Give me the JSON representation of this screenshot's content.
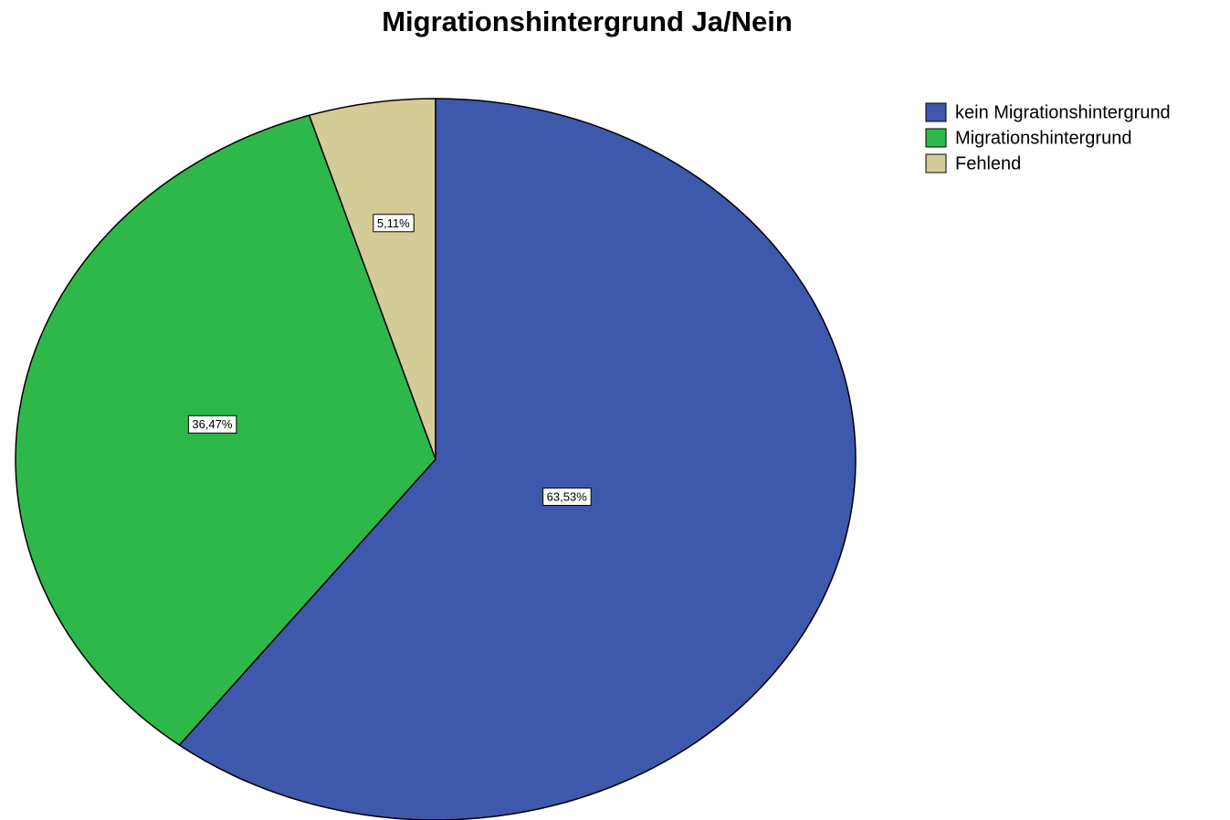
{
  "chart_data": {
    "type": "pie",
    "title": "Migrationshintergrund Ja/Nein",
    "categories": [
      "kein Migrationshintergrund",
      "Migrationshintergrund",
      "Fehlend"
    ],
    "values": [
      63.53,
      36.47,
      5.11
    ],
    "value_labels": [
      "63,53%",
      "36,47%",
      "5,11%"
    ],
    "colors": [
      "#3e58ac",
      "#2eb84a",
      "#d4cc96"
    ],
    "legend": "top-right"
  }
}
